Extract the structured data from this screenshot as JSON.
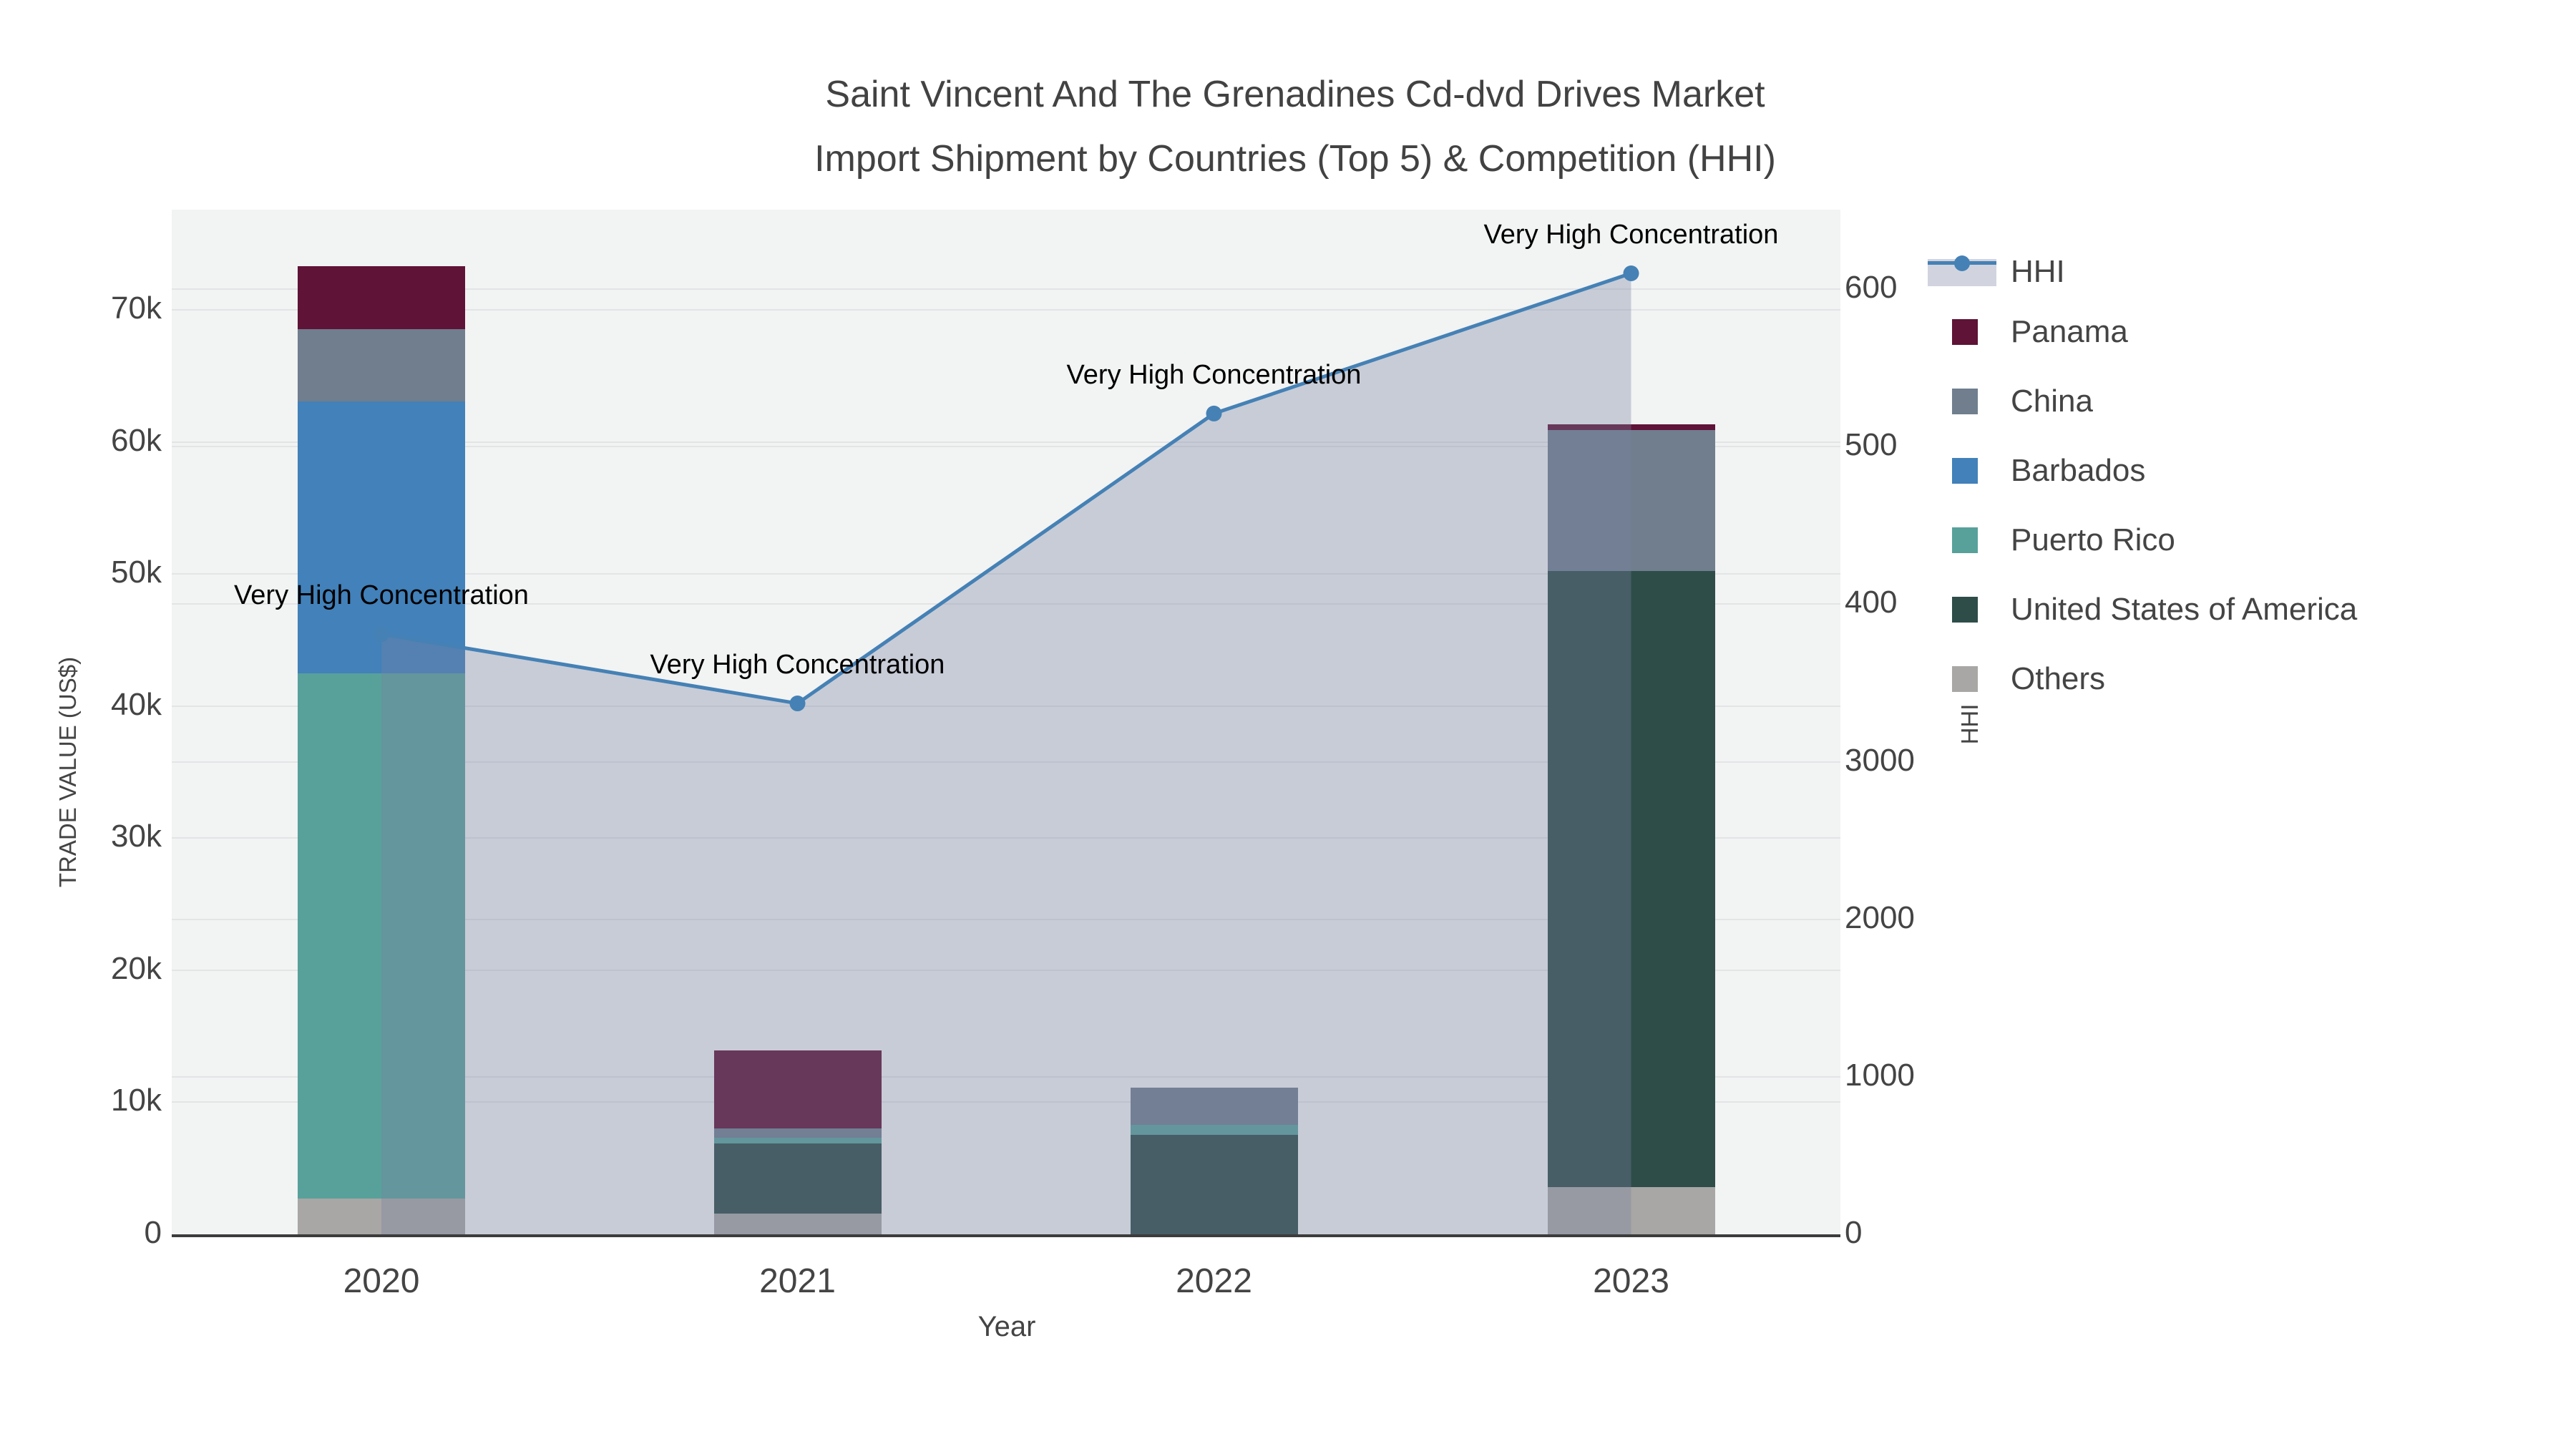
{
  "title": {
    "line1": "Saint Vincent And The Grenadines Cd-dvd Drives Market",
    "line2": "Import Shipment by Countries (Top 5) & Competition (HHI)"
  },
  "axes": {
    "left": {
      "title": "TRADE VALUE (US$)",
      "ticks": [
        "0",
        "10k",
        "20k",
        "30k",
        "40k",
        "50k",
        "60k",
        "70k"
      ]
    },
    "right": {
      "title": "HHI",
      "ticks_displayed": [
        "0",
        "1000",
        "2000",
        "3000",
        "400",
        "500",
        "600"
      ]
    },
    "x": {
      "title": "Year",
      "ticks": [
        "2020",
        "2021",
        "2022",
        "2023"
      ]
    }
  },
  "legend": {
    "items": [
      {
        "label": "HHI",
        "color": "#4581b5",
        "type": "line"
      },
      {
        "label": "Panama",
        "color": "#5f1336",
        "type": "square"
      },
      {
        "label": "China",
        "color": "#707e8e",
        "type": "square"
      },
      {
        "label": "Barbados",
        "color": "#4281ba",
        "type": "square"
      },
      {
        "label": "Puerto Rico",
        "color": "#58a19b",
        "type": "square"
      },
      {
        "label": "United States of America",
        "color": "#2e4d49",
        "type": "square"
      },
      {
        "label": "Others",
        "color": "#a8a7a5",
        "type": "square"
      }
    ]
  },
  "chart_data": {
    "type": "bar",
    "subtype": "stacked-bars-with-line-area-on-secondary-axis",
    "title": "Saint Vincent And The Grenadines Cd-dvd Drives Market Import Shipment by Countries (Top 5) & Competition (HHI)",
    "categories": [
      "2020",
      "2021",
      "2022",
      "2023"
    ],
    "xlabel": "Year",
    "ylabel_left": "TRADE VALUE (US$)",
    "ylabel_right": "HHI",
    "ylim_left": [
      0,
      77500
    ],
    "ylim_right": [
      0,
      6500
    ],
    "ytick_step_left": 10000,
    "ytick_step_right": 1000,
    "grid": true,
    "legend_position": "right",
    "series": [
      {
        "name": "Others",
        "color": "#a8a7a5",
        "values": [
          2710,
          1570,
          0,
          3580
        ]
      },
      {
        "name": "United States of America",
        "color": "#2e4d49",
        "values": [
          0,
          5310,
          7530,
          46630
        ]
      },
      {
        "name": "Puerto Rico",
        "color": "#58a19b",
        "values": [
          39760,
          430,
          760,
          0
        ]
      },
      {
        "name": "Barbados",
        "color": "#4281ba",
        "values": [
          20580,
          0,
          0,
          0
        ]
      },
      {
        "name": "China",
        "color": "#707e8e",
        "values": [
          5470,
          700,
          2820,
          10670
        ]
      },
      {
        "name": "Panama",
        "color": "#5f1336",
        "values": [
          4800,
          5900,
          0,
          430
        ]
      }
    ],
    "line_series": {
      "name": "HHI",
      "color": "#4581b5",
      "area_fill": "rgba(120,130,160,0.34)",
      "values": [
        3810,
        3370,
        5210,
        6100
      ],
      "point_annotation": "Very High Concentration"
    }
  }
}
